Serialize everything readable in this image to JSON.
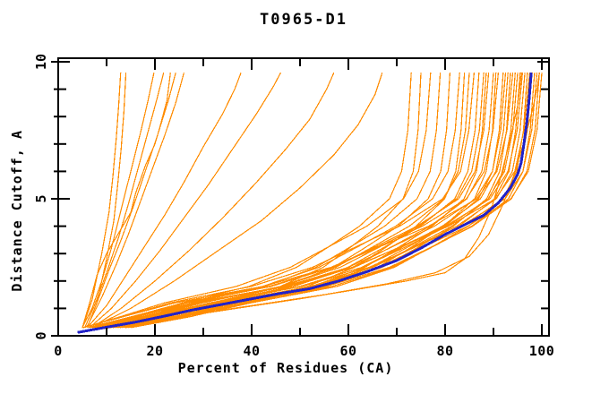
{
  "chart_data": {
    "type": "line",
    "title": "T0965-D1",
    "xlabel": "Percent of Residues (CA)",
    "ylabel": "Distance Cutoff, A",
    "xlim": [
      0,
      101.5
    ],
    "ylim": [
      0,
      10.15
    ],
    "grid": false,
    "legend": "none",
    "x_major_ticks": [
      0,
      20,
      40,
      60,
      80,
      100
    ],
    "x_minor_ticks": [
      10,
      30,
      50,
      70,
      90
    ],
    "y_major_ticks": [
      0,
      5,
      10
    ],
    "y_minor_ticks": [
      1,
      2,
      3,
      4,
      6,
      7,
      8,
      9
    ],
    "colors": {
      "model_curves": "#ff8c00",
      "highlight_curve": "#2222c8",
      "axis": "#000000",
      "background": "#ffffff"
    },
    "highlight_curve": {
      "points_percent_cutoff": [
        [
          4,
          0.12
        ],
        [
          7,
          0.22
        ],
        [
          10.5,
          0.33
        ],
        [
          16,
          0.5
        ],
        [
          22,
          0.72
        ],
        [
          28,
          0.95
        ],
        [
          34,
          1.15
        ],
        [
          40,
          1.35
        ],
        [
          46,
          1.55
        ],
        [
          52,
          1.72
        ],
        [
          58,
          2.0
        ],
        [
          64,
          2.35
        ],
        [
          70,
          2.75
        ],
        [
          75,
          3.2
        ],
        [
          80,
          3.7
        ],
        [
          84,
          4.05
        ],
        [
          88,
          4.4
        ],
        [
          91,
          4.85
        ],
        [
          93.5,
          5.4
        ],
        [
          95,
          5.9
        ],
        [
          95.7,
          6.3
        ],
        [
          96.3,
          7.0
        ],
        [
          96.9,
          7.8
        ],
        [
          97.4,
          8.7
        ],
        [
          97.8,
          9.6
        ]
      ]
    },
    "model_curves_extra": [
      [
        [
          5,
          0.28
        ],
        [
          7,
          1.3
        ],
        [
          9,
          3.0
        ],
        [
          10.5,
          4.5
        ],
        [
          11.3,
          5.8
        ],
        [
          12,
          7.2
        ],
        [
          12.5,
          8.4
        ],
        [
          12.9,
          9.6
        ]
      ],
      [
        [
          6,
          0.3
        ],
        [
          8,
          1.2
        ],
        [
          10,
          2.8
        ],
        [
          11.5,
          4.2
        ],
        [
          12.3,
          5.5
        ],
        [
          13,
          6.8
        ],
        [
          13.6,
          8.2
        ],
        [
          14,
          9.6
        ]
      ],
      [
        [
          5,
          0.3
        ],
        [
          7,
          1.0
        ],
        [
          9,
          2.0
        ],
        [
          11,
          3.2
        ],
        [
          13,
          4.6
        ],
        [
          15,
          6.0
        ],
        [
          17,
          7.4
        ],
        [
          18.6,
          8.6
        ],
        [
          19.8,
          9.6
        ]
      ],
      [
        [
          5.5,
          0.3
        ],
        [
          7.5,
          1.1
        ],
        [
          10,
          2.3
        ],
        [
          12.5,
          3.6
        ],
        [
          14.5,
          4.8
        ],
        [
          16.5,
          6.1
        ],
        [
          18.5,
          7.4
        ],
        [
          20.5,
          8.7
        ],
        [
          21.8,
          9.6
        ]
      ],
      [
        [
          6,
          0.3
        ],
        [
          8,
          1.2
        ],
        [
          10.5,
          2.4
        ],
        [
          13,
          3.5
        ],
        [
          15.5,
          4.7
        ],
        [
          18,
          6.0
        ],
        [
          20.5,
          7.3
        ],
        [
          22.8,
          8.6
        ],
        [
          24.3,
          9.6
        ]
      ],
      [
        [
          6,
          0.35
        ],
        [
          9,
          1.4
        ],
        [
          12,
          2.6
        ],
        [
          14.5,
          3.7
        ],
        [
          17,
          4.9
        ],
        [
          19.5,
          6.1
        ],
        [
          22,
          7.3
        ],
        [
          24.3,
          8.5
        ],
        [
          26,
          9.6
        ]
      ],
      [
        [
          5,
          0.3
        ],
        [
          6.5,
          1.2
        ],
        [
          8,
          2.2
        ],
        [
          10,
          3.0
        ],
        [
          13,
          3.9
        ],
        [
          15,
          4.5
        ],
        [
          16,
          5.2
        ],
        [
          18,
          6.2
        ],
        [
          20,
          7.0
        ],
        [
          21,
          7.6
        ],
        [
          22.5,
          8.6
        ],
        [
          23.2,
          9.6
        ]
      ],
      [
        [
          6,
          0.3
        ],
        [
          10,
          1.1
        ],
        [
          14,
          2.2
        ],
        [
          18,
          3.3
        ],
        [
          22,
          4.4
        ],
        [
          26,
          5.6
        ],
        [
          30,
          6.9
        ],
        [
          34,
          8.1
        ],
        [
          36.5,
          9.0
        ],
        [
          37.8,
          9.6
        ]
      ],
      [
        [
          6.5,
          0.3
        ],
        [
          11,
          1.0
        ],
        [
          16,
          2.0
        ],
        [
          21,
          3.1
        ],
        [
          26,
          4.3
        ],
        [
          31,
          5.5
        ],
        [
          36,
          6.8
        ],
        [
          41,
          8.1
        ],
        [
          44.5,
          9.1
        ],
        [
          46,
          9.6
        ]
      ],
      [
        [
          7,
          0.3
        ],
        [
          13,
          1.0
        ],
        [
          20,
          2.0
        ],
        [
          27,
          3.1
        ],
        [
          34,
          4.3
        ],
        [
          41,
          5.6
        ],
        [
          47,
          6.8
        ],
        [
          52,
          7.9
        ],
        [
          55.5,
          9.0
        ],
        [
          57,
          9.6
        ]
      ],
      [
        [
          7,
          0.3
        ],
        [
          15,
          1.0
        ],
        [
          24,
          2.0
        ],
        [
          33,
          3.1
        ],
        [
          42,
          4.2
        ],
        [
          50,
          5.4
        ],
        [
          57,
          6.6
        ],
        [
          62,
          7.7
        ],
        [
          65.5,
          8.8
        ],
        [
          67,
          9.6
        ]
      ],
      [
        [
          7,
          0.2
        ],
        [
          20,
          0.55
        ],
        [
          35,
          0.95
        ],
        [
          50,
          1.35
        ],
        [
          62,
          1.7
        ],
        [
          72,
          2.0
        ],
        [
          80,
          2.3
        ],
        [
          84,
          2.8
        ],
        [
          87,
          3.6
        ],
        [
          89.5,
          4.6
        ],
        [
          91.5,
          5.8
        ],
        [
          93.5,
          7.2
        ],
        [
          95,
          8.4
        ],
        [
          95.8,
          9.6
        ]
      ],
      [
        [
          8,
          0.25
        ],
        [
          25,
          0.7
        ],
        [
          40,
          1.1
        ],
        [
          55,
          1.5
        ],
        [
          68,
          1.9
        ],
        [
          78,
          2.3
        ],
        [
          85,
          2.9
        ],
        [
          89,
          3.7
        ],
        [
          92,
          4.8
        ],
        [
          94.5,
          6.0
        ],
        [
          96.5,
          7.2
        ],
        [
          98,
          8.2
        ],
        [
          99,
          9.0
        ],
        [
          99.5,
          9.6
        ]
      ]
    ],
    "model_bundle_cutoffs": [
      0.3,
      0.7,
      1.2,
      1.8,
      2.5,
      3.2,
      4,
      5,
      6,
      7.5,
      9.6
    ],
    "model_bundle_percents": [
      [
        7.8,
        16.4,
        25.6,
        39.4,
        49.3,
        55.5,
        62.3,
        68.5,
        71.0,
        72.3,
        73
      ],
      [
        12.5,
        22.7,
        32.4,
        45.9,
        54.8,
        60.2,
        66.1,
        71.3,
        73.4,
        74.4,
        75
      ],
      [
        5.2,
        12.9,
        21.9,
        36.8,
        48.0,
        55.4,
        63.8,
        71.4,
        74.5,
        76.1,
        77
      ],
      [
        8.5,
        17.8,
        27.7,
        42.7,
        53.3,
        60.0,
        67.5,
        74.2,
        76.9,
        78.2,
        79
      ],
      [
        10.9,
        21.1,
        31.5,
        46.6,
        56.9,
        63.3,
        70.3,
        76.5,
        79.1,
        80.3,
        81
      ],
      [
        7.1,
        16.1,
        26.1,
        42.2,
        53.9,
        61.4,
        69.8,
        77.4,
        80.6,
        82.1,
        83
      ],
      [
        14.0,
        25.5,
        36.3,
        51.5,
        61.3,
        67.5,
        74.0,
        79.9,
        82.2,
        83.3,
        84
      ],
      [
        9.1,
        19.1,
        29.8,
        45.9,
        57.4,
        64.6,
        72.6,
        79.8,
        82.7,
        84.2,
        85
      ],
      [
        5.3,
        13.3,
        23.1,
        39.9,
        52.6,
        61.0,
        70.6,
        79.5,
        83.2,
        84.9,
        86
      ],
      [
        10.4,
        21.1,
        32.1,
        48.4,
        59.9,
        67.1,
        74.9,
        82.0,
        84.7,
        86.2,
        87
      ],
      [
        8.4,
        18.4,
        29.2,
        46.2,
        58.3,
        66.0,
        74.5,
        82.4,
        85.5,
        87.1,
        88
      ],
      [
        13.2,
        24.9,
        36.3,
        52.5,
        63.4,
        70.1,
        77.3,
        83.9,
        86.5,
        87.7,
        88.5
      ],
      [
        6.8,
        16.0,
        26.6,
        44.0,
        56.7,
        65.0,
        74.2,
        82.8,
        86.2,
        88.0,
        89
      ],
      [
        9.6,
        20.3,
        31.5,
        48.6,
        60.8,
        68.4,
        76.9,
        84.5,
        87.6,
        89.1,
        90
      ],
      [
        15.1,
        27.4,
        39.1,
        55.4,
        66.1,
        72.7,
        79.7,
        86.1,
        88.5,
        89.8,
        90.5
      ],
      [
        6.2,
        15.2,
        25.8,
        43.5,
        56.8,
        65.5,
        75.3,
        84.4,
        88.1,
        89.9,
        91
      ],
      [
        12.3,
        24.0,
        35.8,
        52.9,
        64.6,
        71.9,
        79.9,
        86.9,
        89.8,
        91.2,
        92
      ],
      [
        7.9,
        17.9,
        29.1,
        47.0,
        60.0,
        68.5,
        77.8,
        86.3,
        89.8,
        91.5,
        92.5
      ],
      [
        10.0,
        20.9,
        32.6,
        50.2,
        62.8,
        70.7,
        79.4,
        87.3,
        90.5,
        92.1,
        93
      ],
      [
        13.9,
        26.3,
        38.3,
        55.5,
        66.9,
        74.1,
        81.7,
        88.6,
        91.3,
        92.7,
        93.5
      ],
      [
        5.2,
        13.5,
        24.1,
        42.3,
        56.4,
        65.8,
        76.6,
        86.6,
        90.7,
        92.8,
        94
      ],
      [
        11.3,
        22.9,
        34.9,
        52.6,
        65.0,
        72.9,
        81.4,
        89.0,
        92.0,
        93.6,
        94.5
      ],
      [
        9.1,
        19.9,
        31.5,
        49.9,
        62.9,
        71.3,
        80.5,
        88.9,
        92.3,
        94.0,
        95
      ],
      [
        12.8,
        24.9,
        37.2,
        54.9,
        67.0,
        74.6,
        82.9,
        90.2,
        93.2,
        94.6,
        95.5
      ],
      [
        7.3,
        17.3,
        28.7,
        47.5,
        61.2,
        70.1,
        80.1,
        89.3,
        93.0,
        94.9,
        96
      ],
      [
        10.3,
        21.7,
        33.8,
        52.1,
        65.1,
        73.3,
        82.4,
        90.6,
        93.9,
        95.5,
        96.5
      ],
      [
        14.5,
        27.3,
        39.8,
        57.6,
        69.5,
        76.8,
        84.8,
        92.0,
        94.8,
        96.2,
        97
      ],
      [
        6.6,
        16.3,
        27.7,
        46.6,
        60.8,
        70.2,
        80.7,
        90.4,
        94.4,
        96.3,
        97.5
      ],
      [
        10.5,
        22.1,
        34.3,
        52.9,
        66.2,
        74.5,
        83.7,
        92.0,
        95.4,
        97.0,
        98
      ],
      [
        13.2,
        25.7,
        38.3,
        56.6,
        69.1,
        76.9,
        85.5,
        93.1,
        96.1,
        97.6,
        98.5
      ],
      [
        8.4,
        19.2,
        31.2,
        50.3,
        64.3,
        73.3,
        83.3,
        92.4,
        96.1,
        97.9,
        99
      ],
      [
        11.9,
        24.1,
        36.7,
        55.4,
        68.5,
        76.7,
        85.7,
        93.7,
        96.9,
        98.6,
        99.5
      ],
      [
        9.6,
        20.9,
        33.2,
        52.4,
        66.2,
        75.0,
        84.7,
        93.6,
        97.2,
        99.0,
        100
      ]
    ]
  }
}
